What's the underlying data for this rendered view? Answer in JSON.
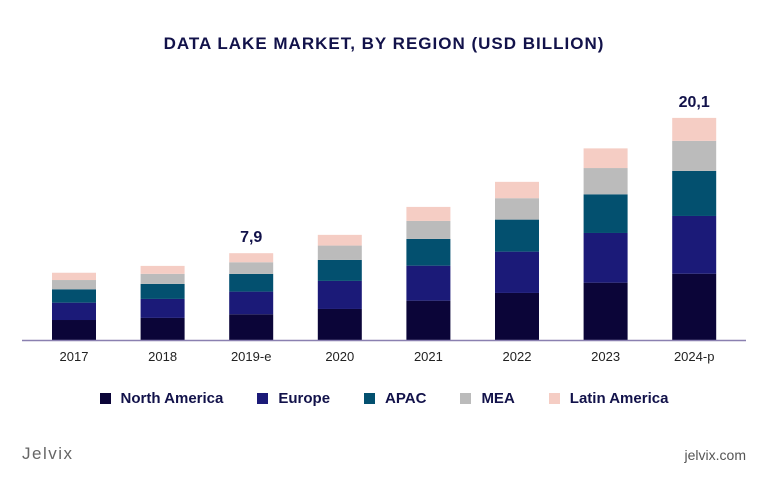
{
  "chart_data": {
    "type": "bar",
    "stacked": true,
    "title": "DATA LAKE MARKET, BY REGION (USD BILLION)",
    "categories": [
      "2017",
      "2018",
      "2019-e",
      "2020",
      "2021",
      "2022",
      "2023",
      "2024-p"
    ],
    "series": [
      {
        "name": "North America",
        "color": "#0b0538",
        "values": [
          1.81,
          2.0,
          2.33,
          2.81,
          3.56,
          4.26,
          5.19,
          6.0
        ]
      },
      {
        "name": "Europe",
        "color": "#1b1a78",
        "values": [
          1.57,
          1.72,
          2.05,
          2.54,
          3.17,
          3.74,
          4.5,
          5.23
        ]
      },
      {
        "name": "APAC",
        "color": "#03506f",
        "values": [
          1.21,
          1.36,
          1.6,
          1.9,
          2.42,
          2.9,
          3.5,
          4.08
        ]
      },
      {
        "name": "MEA",
        "color": "#bbbbbb",
        "values": [
          0.84,
          0.91,
          1.06,
          1.3,
          1.63,
          1.94,
          2.38,
          2.72
        ]
      },
      {
        "name": "Latin America",
        "color": "#f5cdc4",
        "values": [
          0.66,
          0.72,
          0.82,
          0.97,
          1.27,
          1.48,
          1.78,
          2.08
        ]
      }
    ],
    "data_labels": [
      {
        "category": "2019-e",
        "text": "7,9"
      },
      {
        "category": "2024-p",
        "text": "20,1"
      }
    ],
    "ylim": [
      0,
      20.1
    ],
    "grid": false,
    "legend": "bottom",
    "xlabel": "",
    "ylabel": ""
  },
  "footer": {
    "logo": "Jelvix",
    "site": "jelvix.com"
  }
}
